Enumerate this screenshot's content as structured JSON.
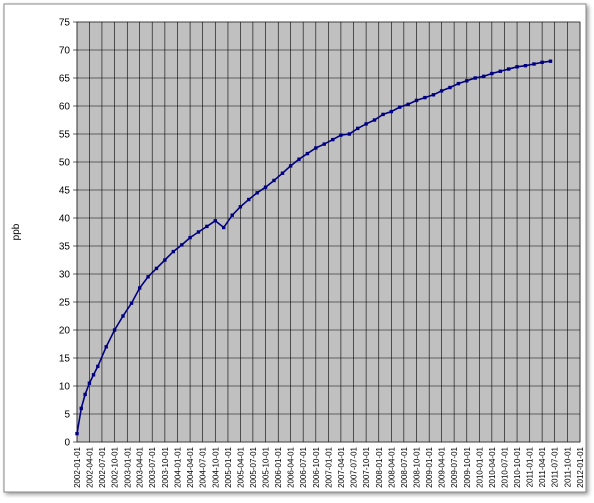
{
  "chart_data": {
    "type": "line",
    "y_label": "ppb",
    "x": [
      "2002-01-01",
      "2002-02-01",
      "2002-03-01",
      "2002-04-01",
      "2002-05-01",
      "2002-06-01",
      "2002-08-01",
      "2002-10-01",
      "2002-12-01",
      "2003-02-01",
      "2003-04-01",
      "2003-06-01",
      "2003-08-01",
      "2003-10-01",
      "2003-12-01",
      "2004-02-01",
      "2004-04-01",
      "2004-06-01",
      "2004-08-01",
      "2004-10-01",
      "2004-12-01",
      "2005-02-01",
      "2005-04-01",
      "2005-06-01",
      "2005-08-01",
      "2005-10-01",
      "2005-12-01",
      "2006-02-01",
      "2006-04-01",
      "2006-06-01",
      "2006-08-01",
      "2006-10-01",
      "2006-12-01",
      "2007-02-01",
      "2007-04-01",
      "2007-06-01",
      "2007-08-01",
      "2007-10-01",
      "2007-12-01",
      "2008-02-01",
      "2008-04-01",
      "2008-06-01",
      "2008-08-01",
      "2008-10-01",
      "2008-12-01",
      "2009-02-01",
      "2009-04-01",
      "2009-06-01",
      "2009-08-01",
      "2009-10-01",
      "2009-12-01",
      "2010-02-01",
      "2010-04-01",
      "2010-06-01",
      "2010-08-01",
      "2010-10-01",
      "2010-12-01",
      "2011-02-01",
      "2011-04-01",
      "2011-06-01"
    ],
    "series": [
      {
        "name": "ppb",
        "color": "#000080",
        "values": [
          1.5,
          6,
          8.5,
          10.5,
          12,
          13.5,
          17,
          20,
          22.5,
          24.8,
          27.5,
          29.5,
          31,
          32.5,
          34,
          35.2,
          36.5,
          37.5,
          38.5,
          39.5,
          38.3,
          40.5,
          42,
          43.3,
          44.5,
          45.5,
          46.7,
          48,
          49.3,
          50.5,
          51.5,
          52.5,
          53.2,
          54,
          54.8,
          55,
          56,
          56.8,
          57.5,
          58.5,
          59,
          59.8,
          60.3,
          61,
          61.5,
          62,
          62.7,
          63.3,
          64,
          64.5,
          65,
          65.3,
          65.8,
          66.2,
          66.6,
          67,
          67.2,
          67.5,
          67.8,
          68
        ]
      }
    ],
    "xlim": [
      "2002-01-01",
      "2012-01-01"
    ],
    "xticks": [
      "2002-01-01",
      "2002-04-01",
      "2002-07-01",
      "2002-10-01",
      "2003-01-01",
      "2003-04-01",
      "2003-07-01",
      "2003-10-01",
      "2004-01-01",
      "2004-04-01",
      "2004-07-01",
      "2004-10-01",
      "2005-01-01",
      "2005-04-01",
      "2005-07-01",
      "2005-10-01",
      "2006-01-01",
      "2006-04-01",
      "2006-07-01",
      "2006-10-01",
      "2007-01-01",
      "2007-04-01",
      "2007-07-01",
      "2007-10-01",
      "2008-01-01",
      "2008-04-01",
      "2008-07-01",
      "2008-10-01",
      "2009-01-01",
      "2009-04-01",
      "2009-07-01",
      "2009-10-01",
      "2010-01-01",
      "2010-04-01",
      "2010-07-01",
      "2010-10-01",
      "2011-01-01",
      "2011-04-01",
      "2011-07-01",
      "2011-10-01",
      "2012-01-01"
    ],
    "ylim": [
      0,
      75
    ],
    "yticks": [
      0,
      5,
      10,
      15,
      20,
      25,
      30,
      35,
      40,
      45,
      50,
      55,
      60,
      65,
      70,
      75
    ],
    "grid": true
  }
}
